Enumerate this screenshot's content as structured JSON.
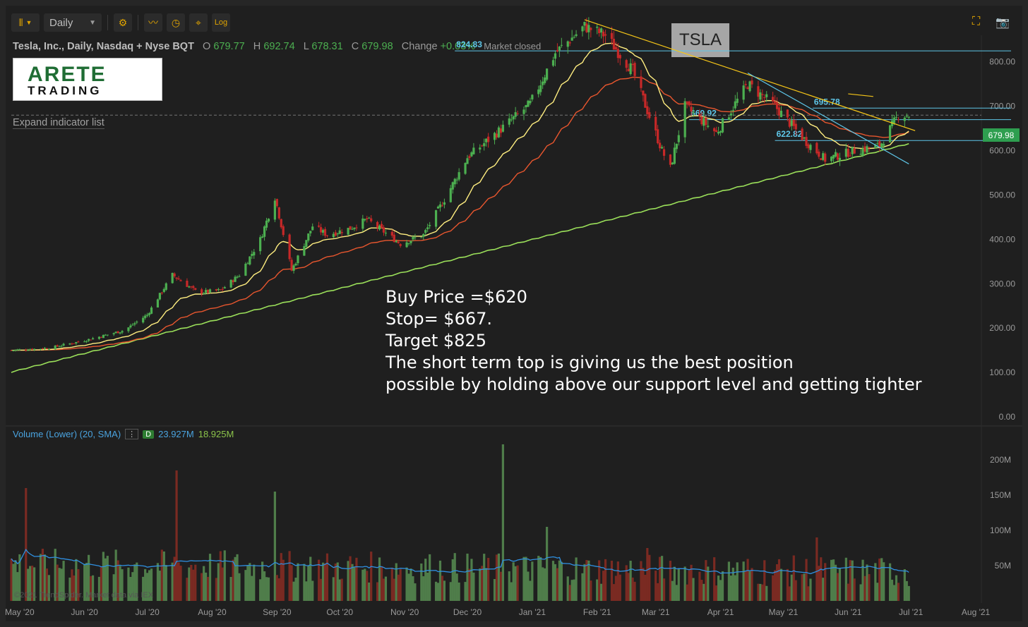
{
  "toolbar": {
    "interval": "Daily",
    "log_label": "Log"
  },
  "header": {
    "symbol_line": "Tesla, Inc., Daily, Nasdaq + Nyse BQT",
    "open_label": "O",
    "open": "679.77",
    "high_label": "H",
    "high": "692.74",
    "low_label": "L",
    "low": "678.31",
    "close_label": "C",
    "close": "679.98",
    "change_label": "Change",
    "change": "+0.03%",
    "market_status": "Market closed"
  },
  "logo": {
    "line1": "ARETE",
    "line2": "TRADING"
  },
  "expand_indicators": "Expand indicator list",
  "ticker_box": "TSLA",
  "annotation_lines": [
    "Buy Price =$620",
    "Stop= $667.",
    "Target $825",
    "The short term top is giving us the best position",
    "possible by holding above our support level and getting tighter"
  ],
  "volume_header": {
    "label": "Volume (Lower) (20, SMA)",
    "badge": "D",
    "value1": "23.927M",
    "value2": "18.925M"
  },
  "copyright": "©2021 TrendSpider. Market data via IEX",
  "current_price_tag": "679.98",
  "colors": {
    "up": "#4caf50",
    "down": "#c62828",
    "ema_fast": "#ffee80",
    "ema_mid": "#e8562e",
    "sma_long": "#9be05a",
    "hline": "#5ec6e8",
    "trend": "#f5c518",
    "vol_sma": "#2f8fe0"
  },
  "chart_data": [
    {
      "type": "candlestick",
      "title": "",
      "y_axis_ticks": [
        "800.00",
        "700.00",
        "600.00",
        "500.00",
        "400.00",
        "300.00",
        "200.00",
        "100.00",
        "0.00"
      ],
      "ylim": [
        0,
        860
      ],
      "x_axis_ticks": [
        "May '20",
        "Jun '20",
        "Jul '20",
        "Aug '20",
        "Sep '20",
        "Oct '20",
        "Nov '20",
        "Dec '20",
        "Jan '21",
        "Feb '21",
        "Mar '21",
        "Apr '21",
        "May '21",
        "Jun '21",
        "Jul '21",
        "Aug '21"
      ],
      "x_range": [
        "2020-04-27",
        "2021-08-03"
      ],
      "close_path": [
        [
          "2020-04-27",
          150
        ],
        [
          "2020-05-15",
          155
        ],
        [
          "2020-06-01",
          172
        ],
        [
          "2020-06-20",
          195
        ],
        [
          "2020-07-01",
          230
        ],
        [
          "2020-07-13",
          320
        ],
        [
          "2020-07-25",
          280
        ],
        [
          "2020-08-05",
          285
        ],
        [
          "2020-08-14",
          320
        ],
        [
          "2020-08-24",
          400
        ],
        [
          "2020-08-31",
          495
        ],
        [
          "2020-09-08",
          330
        ],
        [
          "2020-09-18",
          430
        ],
        [
          "2020-09-25",
          410
        ],
        [
          "2020-10-06",
          425
        ],
        [
          "2020-10-14",
          445
        ],
        [
          "2020-10-30",
          390
        ],
        [
          "2020-11-10",
          410
        ],
        [
          "2020-11-20",
          490
        ],
        [
          "2020-12-01",
          585
        ],
        [
          "2020-12-15",
          640
        ],
        [
          "2020-12-31",
          705
        ],
        [
          "2021-01-12",
          820
        ],
        [
          "2021-01-26",
          880
        ],
        [
          "2021-02-05",
          860
        ],
        [
          "2021-02-18",
          780
        ],
        [
          "2021-03-04",
          600
        ],
        [
          "2021-03-08",
          560
        ],
        [
          "2021-03-15",
          700
        ],
        [
          "2021-03-30",
          640
        ],
        [
          "2021-04-14",
          750
        ],
        [
          "2021-04-27",
          700
        ],
        [
          "2021-05-12",
          620
        ],
        [
          "2021-05-21",
          580
        ],
        [
          "2021-06-04",
          600
        ],
        [
          "2021-06-16",
          610
        ],
        [
          "2021-06-25",
          680
        ],
        [
          "2021-06-30",
          680
        ]
      ],
      "horizontal_levels": [
        {
          "label": "824.83",
          "value": 824.83
        },
        {
          "label": "695.78",
          "value": 695.78
        },
        {
          "label": "669.92",
          "value": 669.92
        },
        {
          "label": "622.82",
          "value": 622.82
        }
      ],
      "indicators": [
        "EMA fast",
        "EMA mid",
        "SMA 200"
      ],
      "trendlines": [
        {
          "from": [
            "2021-01-26",
            895
          ],
          "to": [
            "2021-07-03",
            645
          ]
        },
        {
          "from": [
            "2021-04-14",
            775
          ],
          "to": [
            "2021-06-30",
            570
          ]
        }
      ],
      "last_price": 679.98
    },
    {
      "type": "bar",
      "title": "",
      "y_axis_ticks": [
        "200M",
        "150M",
        "100M",
        "50M"
      ],
      "ylim": [
        0,
        230
      ],
      "unit": "M",
      "peaks": [
        {
          "x": "2020-05-04",
          "value": 160
        },
        {
          "x": "2020-07-15",
          "value": 185
        },
        {
          "x": "2020-08-31",
          "value": 155
        },
        {
          "x": "2020-12-18",
          "value": 222
        },
        {
          "x": "2021-01-08",
          "value": 105
        },
        {
          "x": "2021-02-25",
          "value": 75
        },
        {
          "x": "2021-05-17",
          "value": 90
        },
        {
          "x": "2021-06-28",
          "value": 45
        }
      ],
      "last_values": [
        "23.927M",
        "18.925M"
      ],
      "sma_period": 20
    }
  ]
}
